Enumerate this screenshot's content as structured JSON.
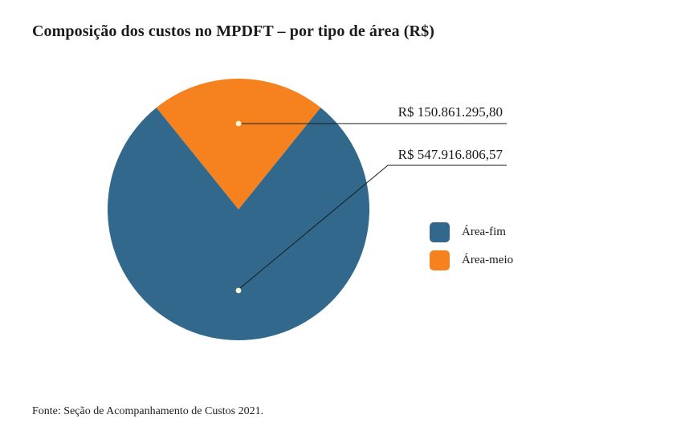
{
  "title": "Composição dos custos no MPDFT – por tipo de área (R$)",
  "footer": {
    "source": "Fonte: Seção de Acompanhamento de Custos 2021."
  },
  "chart_data": {
    "type": "pie",
    "title": "Composição dos custos no MPDFT – por tipo de área (R$)",
    "legend_position": "right",
    "rotation_note": "smaller slice (Área-meio) centered at 12 o'clock",
    "series": [
      {
        "name": "Área-fim",
        "value": 547916806.57,
        "label": "R$ 547.916.806,57",
        "color": "#31688C"
      },
      {
        "name": "Área-meio",
        "value": 150861295.8,
        "label": "R$ 150.861.295,80",
        "color": "#F5821F"
      }
    ],
    "source": "Fonte: Seção de Acompanhamento de Custos 2021.",
    "callout_dot_color": "#FBF3D6",
    "leader_line_color": "#1a1a1a"
  }
}
